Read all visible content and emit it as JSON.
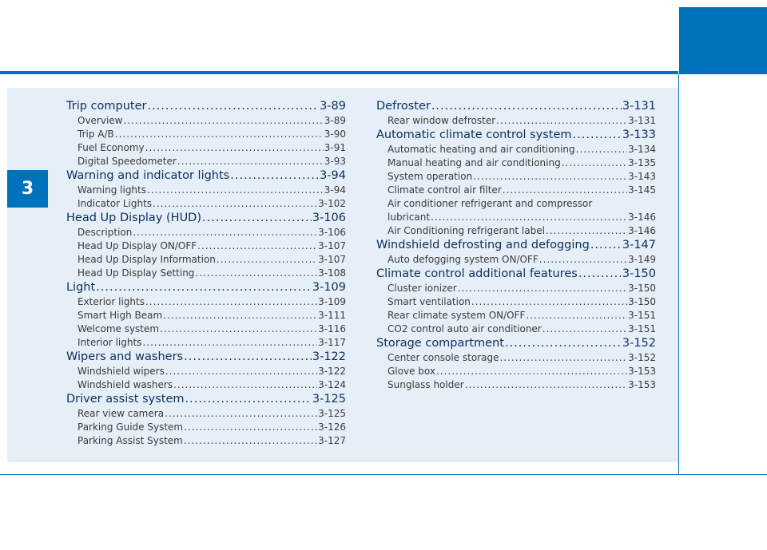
{
  "chapter_number": "3",
  "left_column": [
    {
      "title": "Trip computer",
      "page": "3-89",
      "items": [
        {
          "title": "Overview",
          "page": "3-89"
        },
        {
          "title": "Trip A/B",
          "page": "3-90"
        },
        {
          "title": "Fuel Economy",
          "page": "3-91"
        },
        {
          "title": "Digital Speedometer",
          "page": "3-93"
        }
      ]
    },
    {
      "title": "Warning and indicator lights",
      "page": "3-94",
      "items": [
        {
          "title": "Warning lights",
          "page": "3-94"
        },
        {
          "title": "Indicator Lights",
          "page": "3-102"
        }
      ]
    },
    {
      "title": "Head Up Display (HUD)",
      "page": "3-106",
      "items": [
        {
          "title": "Description",
          "page": "3-106"
        },
        {
          "title": "Head Up Display ON/OFF",
          "page": "3-107"
        },
        {
          "title": "Head Up Display Information",
          "page": "3-107"
        },
        {
          "title": "Head Up Display Setting",
          "page": "3-108"
        }
      ]
    },
    {
      "title": "Light",
      "page": "3-109",
      "items": [
        {
          "title": "Exterior lights",
          "page": "3-109"
        },
        {
          "title": "Smart High Beam",
          "page": "3-111"
        },
        {
          "title": "Welcome system",
          "page": "3-116"
        },
        {
          "title": "Interior lights",
          "page": "3-117"
        }
      ]
    },
    {
      "title": "Wipers and washers",
      "page": "3-122",
      "items": [
        {
          "title": "Windshield wipers",
          "page": "3-122"
        },
        {
          "title": "Windshield washers",
          "page": "3-124"
        }
      ]
    },
    {
      "title": "Driver assist system",
      "page": "3-125",
      "items": [
        {
          "title": "Rear view camera",
          "page": "3-125"
        },
        {
          "title": "Parking Guide System",
          "page": "3-126"
        },
        {
          "title": "Parking Assist System",
          "page": "3-127"
        }
      ]
    }
  ],
  "right_column": [
    {
      "title": "Defroster",
      "page": "3-131",
      "items": [
        {
          "title": "Rear window defroster",
          "page": "3-131"
        }
      ]
    },
    {
      "title": "Automatic climate control system",
      "page": "3-133",
      "items": [
        {
          "title": "Automatic heating and air conditioning",
          "page": "3-134"
        },
        {
          "title": "Manual heating and air conditioning",
          "page": "3-135"
        },
        {
          "title": "System operation",
          "page": "3-143"
        },
        {
          "title": "Climate control air filter",
          "page": "3-145"
        },
        {
          "title": "Air conditioner refrigerant and compressor",
          "title_cont": "lubricant",
          "page": "3-146"
        },
        {
          "title": "Air Conditioning refrigerant label",
          "page": "3-146"
        }
      ]
    },
    {
      "title": "Windshield defrosting and defogging",
      "page": "3-147",
      "items": [
        {
          "title": "Auto defogging system ON/OFF",
          "page": "3-149"
        }
      ]
    },
    {
      "title": "Climate control additional features",
      "page": "3-150",
      "items": [
        {
          "title": "Cluster ionizer",
          "page": "3-150"
        },
        {
          "title": "Smart ventilation",
          "page": "3-150"
        },
        {
          "title": "Rear climate system ON/OFF",
          "page": "3-151"
        },
        {
          "title": "CO2 control auto air conditioner",
          "page": "3-151"
        }
      ]
    },
    {
      "title": "Storage compartment",
      "page": "3-152",
      "items": [
        {
          "title": "Center console storage",
          "page": "3-152"
        },
        {
          "title": "Glove box",
          "page": "3-153"
        },
        {
          "title": "Sunglass holder",
          "page": "3-153"
        }
      ]
    }
  ]
}
